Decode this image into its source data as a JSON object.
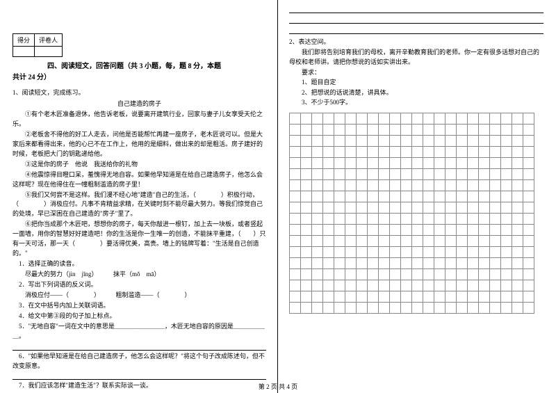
{
  "scoreBox": {
    "c1": "得分",
    "c2": "评卷人"
  },
  "section4": {
    "heading_line1": "四、阅读短文，回答问题（共 3 小题，每，题 8 分，本题",
    "heading_line2": "共计 24 分）"
  },
  "q1": {
    "num": "1、阅读短文，完成练习。",
    "title": "自己建造的房子",
    "p1": "①有个老木匠准备退休，他告诉老板，说要离开建筑行业，回家与妻子儿女享受天伦之乐。",
    "p2": "②老板舍不得他的好工人走去，问他是否能帮忙再建一座房子，老木匠说可以。但是大家后来都看得出来，他的心已不在工作上，他用的是细料，做出来的却是粗活。房子建好的时候，老板把大门的钥匙递给他。",
    "p3": "③这是你的房子　他说　我送给你的礼物",
    "p4": "④他震惊得目瞪口呆，羞愧得无地自容。如果他早知道是在给自己建造房子，他怎么会这样呢？现在他得住在一幢粗制滥造的房子里！",
    "p5": "⑤我们又何尝不是这样。我们漫不经心地\"建造\"自己的生活，（　　　　）积极行动，（　　　　）消极应付。凡事不肯精益求精，在关键时刻不能尽最大努力。等我们惊觉自己的处境，早已深困在自己建造的\"房子\"里了。",
    "p6": "⑥把你当成那个木匠吧，想想你的房子，每天你敲进一根钉，加上去一块板，或者竖起一面墙，用你的智慧好好建造吧！你的生活是你一生唯一的创造，不能抹平重建，（　　）只有一天可活，那一天（　　　　）要活得优美，高贵。墙上的铭牌写着：\"生活是自己创造的。\"",
    "s1_label": "1．选择正确的读音。",
    "s1_item": "尽最大的努力（jìn　jǐng）　　　抹平（mǒ　mā）",
    "s2_label": "2．写出下列词语的反义词。",
    "s2_item": "消极应付——（　　　　）　　　粗制滥造——（　　　　）",
    "s3_label": "3．在文中括号内加上关联词语。",
    "s4_label": "4．给文中第③段的句子加上标点。",
    "s5_label": "5．\"无地自容\"一词在文中的意思是＿＿＿＿＿＿＿＿，木匠无地自容的原因是＿＿＿＿＿＿。",
    "s6_label": "6．\"如果他早知道是在给自己建造房子，他怎么会这样呢？\"将这个句子改成陈述句，但不改变原意。",
    "s7_label": "7．我们应该怎样\"建造生活\"？联系实际谈一谈。"
  },
  "q2": {
    "num": "2、表达空间。",
    "intro": "我们即将告别培育我们的母校，离开辛勤教育我们的老师。你一定有很多话想对自己的母校和老师讲。请把你想说的话如实讲出来。",
    "reqLabel": "要求：",
    "r1": "1、题目自定",
    "r2": "2、把想说的话说清楚，讲具体。",
    "r3": "3、不少于500字。"
  },
  "grid": {
    "rows": 18,
    "cols": 22
  },
  "pager": "第 2 页 共 4 页"
}
